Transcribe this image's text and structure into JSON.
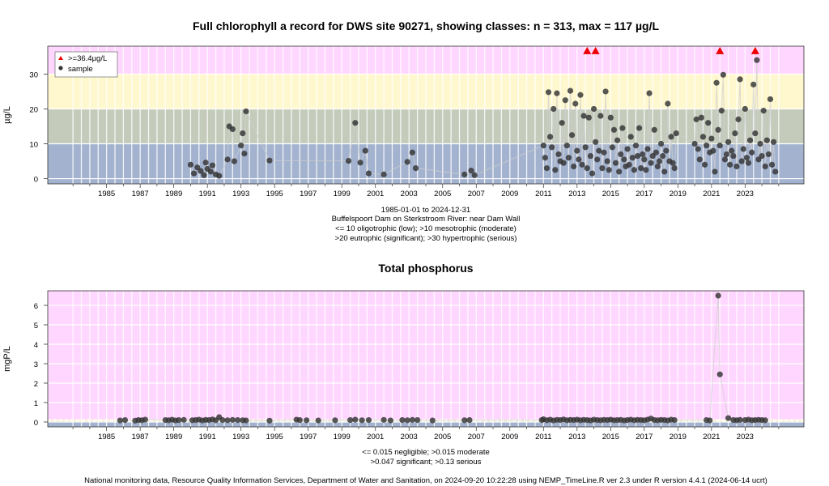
{
  "chart_data": [
    {
      "type": "scatter",
      "title": "Full chlorophyll a record for DWS site 90271, showing classes: n = 313, max = 117 µg/L",
      "ylabel": "µg/L",
      "xlabel": "",
      "ylim": [
        -1.5,
        38
      ],
      "xlim": [
        1981.5,
        2026.5
      ],
      "yticks": [
        0,
        10,
        20,
        30
      ],
      "xticks": [
        1985,
        1987,
        1989,
        1991,
        1993,
        1995,
        1997,
        1999,
        2001,
        2003,
        2005,
        2007,
        2009,
        2011,
        2013,
        2015,
        2017,
        2019,
        2021,
        2023
      ],
      "grid": true,
      "bands": [
        {
          "from": -1.5,
          "to": 10,
          "color": "#a3b3cf"
        },
        {
          "from": 10,
          "to": 20,
          "color": "#c4cbbb"
        },
        {
          "from": 20,
          "to": 30,
          "color": "#fff8cf"
        },
        {
          "from": 30,
          "to": 38,
          "color": "#ffd6ff"
        }
      ],
      "legend": {
        "position": "top-left",
        "entries": [
          {
            "label": ">=36.4µg/L",
            "marker": "triangle",
            "color": "#ee0000"
          },
          {
            "label": "sample",
            "marker": "circle",
            "color": "#333333"
          }
        ]
      },
      "exceed": [
        2013.6,
        2014.1,
        2021.5,
        2023.6
      ],
      "exceed_value": 36.4,
      "points": [
        [
          1990.0,
          4.0
        ],
        [
          1990.2,
          1.5
        ],
        [
          1990.4,
          3.2
        ],
        [
          1990.6,
          2.2
        ],
        [
          1990.8,
          1.0
        ],
        [
          1990.9,
          4.6
        ],
        [
          1991.0,
          2.8
        ],
        [
          1991.2,
          2.0
        ],
        [
          1991.3,
          3.8
        ],
        [
          1991.5,
          1.2
        ],
        [
          1991.7,
          0.8
        ],
        [
          1992.2,
          5.5
        ],
        [
          1992.3,
          15.0
        ],
        [
          1992.5,
          14.2
        ],
        [
          1992.6,
          5.0
        ],
        [
          1993.0,
          9.5
        ],
        [
          1993.1,
          13.0
        ],
        [
          1993.2,
          7.2
        ],
        [
          1993.3,
          19.3
        ],
        [
          1994.7,
          5.2
        ],
        [
          1999.4,
          5.1
        ],
        [
          1999.8,
          16.0
        ],
        [
          2000.1,
          4.6
        ],
        [
          2000.4,
          8.0
        ],
        [
          2000.6,
          1.5
        ],
        [
          2001.5,
          1.2
        ],
        [
          2002.9,
          4.8
        ],
        [
          2003.2,
          7.5
        ],
        [
          2003.4,
          3.0
        ],
        [
          2006.3,
          1.2
        ],
        [
          2006.7,
          2.3
        ],
        [
          2006.9,
          1.0
        ],
        [
          2011.0,
          9.5
        ],
        [
          2011.1,
          6.0
        ],
        [
          2011.2,
          3.0
        ],
        [
          2011.3,
          24.8
        ],
        [
          2011.4,
          12.0
        ],
        [
          2011.5,
          9.0
        ],
        [
          2011.6,
          20.0
        ],
        [
          2011.7,
          2.5
        ],
        [
          2011.8,
          24.5
        ],
        [
          2011.9,
          7.0
        ],
        [
          2012.0,
          5.0
        ],
        [
          2012.1,
          16.0
        ],
        [
          2012.2,
          4.5
        ],
        [
          2012.3,
          22.5
        ],
        [
          2012.4,
          9.5
        ],
        [
          2012.5,
          6.0
        ],
        [
          2012.6,
          25.2
        ],
        [
          2012.7,
          12.5
        ],
        [
          2012.8,
          3.5
        ],
        [
          2012.9,
          21.5
        ],
        [
          2013.0,
          8.0
        ],
        [
          2013.1,
          5.5
        ],
        [
          2013.2,
          24.0
        ],
        [
          2013.3,
          4.0
        ],
        [
          2013.4,
          18.0
        ],
        [
          2013.5,
          9.0
        ],
        [
          2013.6,
          3.0
        ],
        [
          2013.7,
          17.5
        ],
        [
          2013.8,
          6.5
        ],
        [
          2013.9,
          1.5
        ],
        [
          2014.0,
          20.0
        ],
        [
          2014.1,
          10.5
        ],
        [
          2014.2,
          5.5
        ],
        [
          2014.3,
          8.0
        ],
        [
          2014.4,
          18.0
        ],
        [
          2014.5,
          3.0
        ],
        [
          2014.6,
          7.5
        ],
        [
          2014.7,
          25.0
        ],
        [
          2014.8,
          5.0
        ],
        [
          2014.9,
          2.5
        ],
        [
          2015.0,
          17.5
        ],
        [
          2015.1,
          9.0
        ],
        [
          2015.2,
          14.0
        ],
        [
          2015.3,
          4.5
        ],
        [
          2015.4,
          11.0
        ],
        [
          2015.5,
          2.0
        ],
        [
          2015.6,
          7.0
        ],
        [
          2015.7,
          14.5
        ],
        [
          2015.8,
          5.5
        ],
        [
          2015.9,
          3.5
        ],
        [
          2016.0,
          8.5
        ],
        [
          2016.1,
          4.0
        ],
        [
          2016.2,
          12.0
        ],
        [
          2016.3,
          6.0
        ],
        [
          2016.4,
          2.5
        ],
        [
          2016.5,
          9.5
        ],
        [
          2016.6,
          6.5
        ],
        [
          2016.7,
          14.5
        ],
        [
          2016.8,
          3.0
        ],
        [
          2016.9,
          7.0
        ],
        [
          2017.0,
          5.5
        ],
        [
          2017.1,
          2.5
        ],
        [
          2017.2,
          8.5
        ],
        [
          2017.3,
          24.5
        ],
        [
          2017.4,
          4.5
        ],
        [
          2017.5,
          6.5
        ],
        [
          2017.6,
          14.0
        ],
        [
          2017.7,
          7.5
        ],
        [
          2017.8,
          3.5
        ],
        [
          2017.9,
          5.0
        ],
        [
          2018.0,
          10.0
        ],
        [
          2018.1,
          6.5
        ],
        [
          2018.2,
          2.0
        ],
        [
          2018.3,
          8.0
        ],
        [
          2018.4,
          21.5
        ],
        [
          2018.5,
          5.0
        ],
        [
          2018.6,
          12.0
        ],
        [
          2018.7,
          4.5
        ],
        [
          2018.8,
          3.0
        ],
        [
          2018.9,
          13.0
        ],
        [
          2020.0,
          10.0
        ],
        [
          2020.1,
          17.0
        ],
        [
          2020.2,
          8.5
        ],
        [
          2020.3,
          5.5
        ],
        [
          2020.4,
          17.5
        ],
        [
          2020.5,
          12.0
        ],
        [
          2020.6,
          4.0
        ],
        [
          2020.7,
          9.5
        ],
        [
          2020.8,
          16.0
        ],
        [
          2020.9,
          7.5
        ],
        [
          2021.0,
          11.5
        ],
        [
          2021.1,
          8.0
        ],
        [
          2021.2,
          2.0
        ],
        [
          2021.3,
          27.5
        ],
        [
          2021.4,
          14.0
        ],
        [
          2021.5,
          9.5
        ],
        [
          2021.6,
          19.5
        ],
        [
          2021.7,
          29.8
        ],
        [
          2021.8,
          5.5
        ],
        [
          2021.9,
          7.0
        ],
        [
          2022.0,
          10.5
        ],
        [
          2022.1,
          4.0
        ],
        [
          2022.2,
          8.0
        ],
        [
          2022.3,
          6.5
        ],
        [
          2022.4,
          13.0
        ],
        [
          2022.5,
          3.5
        ],
        [
          2022.6,
          17.0
        ],
        [
          2022.7,
          28.5
        ],
        [
          2022.8,
          5.0
        ],
        [
          2022.9,
          8.5
        ],
        [
          2023.0,
          20.0
        ],
        [
          2023.1,
          6.0
        ],
        [
          2023.2,
          4.5
        ],
        [
          2023.3,
          11.0
        ],
        [
          2023.4,
          7.5
        ],
        [
          2023.5,
          27.0
        ],
        [
          2023.6,
          13.0
        ],
        [
          2023.7,
          34.0
        ],
        [
          2023.8,
          5.5
        ],
        [
          2023.9,
          10.0
        ],
        [
          2024.0,
          6.5
        ],
        [
          2024.1,
          19.5
        ],
        [
          2024.2,
          3.5
        ],
        [
          2024.3,
          11.0
        ],
        [
          2024.4,
          7.0
        ],
        [
          2024.5,
          22.8
        ],
        [
          2024.6,
          4.0
        ],
        [
          2024.7,
          10.5
        ],
        [
          2024.8,
          2.0
        ]
      ],
      "footer_lines": [
        "1985-01-01 to 2024-12-31",
        "Buffelspoort Dam on Sterkstroom River: near Dam Wall",
        "<= 10 oligotrophic (low); >10 mesotrophic (moderate)",
        ">20 eutrophic (significant); >30 hypertrophic (serious)"
      ]
    },
    {
      "type": "scatter",
      "title": "Total phosphorus",
      "ylabel": "mgP/L",
      "xlabel": "",
      "ylim": [
        -0.25,
        6.75
      ],
      "xlim": [
        1981.5,
        2026.5
      ],
      "yticks": [
        0,
        1,
        2,
        3,
        4,
        5,
        6
      ],
      "xticks": [
        1985,
        1987,
        1989,
        1991,
        1993,
        1995,
        1997,
        1999,
        2001,
        2003,
        2005,
        2007,
        2009,
        2011,
        2013,
        2015,
        2017,
        2019,
        2021,
        2023
      ],
      "grid": true,
      "bands": [
        {
          "from": -0.25,
          "to": 0.015,
          "color": "#a3b3cf"
        },
        {
          "from": 0.015,
          "to": 0.047,
          "color": "#c4cbbb"
        },
        {
          "from": 0.047,
          "to": 0.13,
          "color": "#fff8cf"
        },
        {
          "from": 0.13,
          "to": 6.75,
          "color": "#ffd6ff"
        }
      ],
      "points": [
        [
          1985.8,
          0.08
        ],
        [
          1986.1,
          0.1
        ],
        [
          1986.7,
          0.07
        ],
        [
          1986.9,
          0.1
        ],
        [
          1987.1,
          0.09
        ],
        [
          1987.3,
          0.12
        ],
        [
          1988.5,
          0.1
        ],
        [
          1988.7,
          0.09
        ],
        [
          1988.9,
          0.12
        ],
        [
          1989.1,
          0.08
        ],
        [
          1989.3,
          0.1
        ],
        [
          1989.6,
          0.11
        ],
        [
          1990.1,
          0.09
        ],
        [
          1990.3,
          0.1
        ],
        [
          1990.5,
          0.12
        ],
        [
          1990.7,
          0.08
        ],
        [
          1990.9,
          0.11
        ],
        [
          1991.1,
          0.1
        ],
        [
          1991.3,
          0.13
        ],
        [
          1991.5,
          0.09
        ],
        [
          1991.7,
          0.25
        ],
        [
          1991.9,
          0.1
        ],
        [
          1992.2,
          0.09
        ],
        [
          1992.5,
          0.11
        ],
        [
          1992.8,
          0.1
        ],
        [
          1993.1,
          0.09
        ],
        [
          1993.3,
          0.08
        ],
        [
          1994.7,
          0.07
        ],
        [
          1996.3,
          0.12
        ],
        [
          1996.5,
          0.1
        ],
        [
          1996.9,
          0.09
        ],
        [
          1997.6,
          0.08
        ],
        [
          1998.6,
          0.09
        ],
        [
          1999.5,
          0.1
        ],
        [
          1999.8,
          0.12
        ],
        [
          2000.2,
          0.09
        ],
        [
          2000.6,
          0.1
        ],
        [
          2001.5,
          0.11
        ],
        [
          2001.9,
          0.08
        ],
        [
          2002.6,
          0.1
        ],
        [
          2002.9,
          0.09
        ],
        [
          2003.2,
          0.11
        ],
        [
          2003.5,
          0.1
        ],
        [
          2004.4,
          0.08
        ],
        [
          2006.3,
          0.09
        ],
        [
          2006.6,
          0.1
        ],
        [
          2010.9,
          0.1
        ],
        [
          2011.0,
          0.14
        ],
        [
          2011.2,
          0.09
        ],
        [
          2011.4,
          0.12
        ],
        [
          2011.6,
          0.08
        ],
        [
          2011.8,
          0.11
        ],
        [
          2012.0,
          0.1
        ],
        [
          2012.2,
          0.13
        ],
        [
          2012.4,
          0.09
        ],
        [
          2012.6,
          0.11
        ],
        [
          2012.8,
          0.1
        ],
        [
          2013.0,
          0.12
        ],
        [
          2013.2,
          0.09
        ],
        [
          2013.4,
          0.11
        ],
        [
          2013.6,
          0.1
        ],
        [
          2013.8,
          0.08
        ],
        [
          2014.0,
          0.12
        ],
        [
          2014.2,
          0.1
        ],
        [
          2014.4,
          0.09
        ],
        [
          2014.6,
          0.11
        ],
        [
          2014.8,
          0.1
        ],
        [
          2015.0,
          0.12
        ],
        [
          2015.2,
          0.09
        ],
        [
          2015.4,
          0.1
        ],
        [
          2015.6,
          0.11
        ],
        [
          2015.8,
          0.08
        ],
        [
          2016.0,
          0.1
        ],
        [
          2016.2,
          0.12
        ],
        [
          2016.4,
          0.09
        ],
        [
          2016.6,
          0.11
        ],
        [
          2016.8,
          0.1
        ],
        [
          2017.0,
          0.09
        ],
        [
          2017.2,
          0.12
        ],
        [
          2017.4,
          0.18
        ],
        [
          2017.6,
          0.1
        ],
        [
          2017.8,
          0.09
        ],
        [
          2018.0,
          0.11
        ],
        [
          2018.2,
          0.1
        ],
        [
          2018.4,
          0.08
        ],
        [
          2018.6,
          0.12
        ],
        [
          2018.8,
          0.1
        ],
        [
          2020.7,
          0.1
        ],
        [
          2020.9,
          0.08
        ],
        [
          2021.4,
          6.5
        ],
        [
          2021.5,
          2.45
        ],
        [
          2022.0,
          0.2
        ],
        [
          2022.3,
          0.1
        ],
        [
          2022.5,
          0.09
        ],
        [
          2022.7,
          0.11
        ],
        [
          2023.0,
          0.1
        ],
        [
          2023.2,
          0.12
        ],
        [
          2023.4,
          0.09
        ],
        [
          2023.6,
          0.1
        ],
        [
          2023.8,
          0.11
        ],
        [
          2024.0,
          0.1
        ],
        [
          2024.2,
          0.09
        ]
      ],
      "footer_lines": [
        "<= 0.015 negligible; >0.015 moderate",
        ">0.047 significant; >0.13 serious"
      ]
    }
  ],
  "credit": "National monitoring data, Resource Quality Information Services, Department of Water and Sanitation, on 2024-09-20 10:22:28 using NEMP_TimeLine.R ver 2.3 under R version 4.4.1 (2024-06-14 ucrt)"
}
